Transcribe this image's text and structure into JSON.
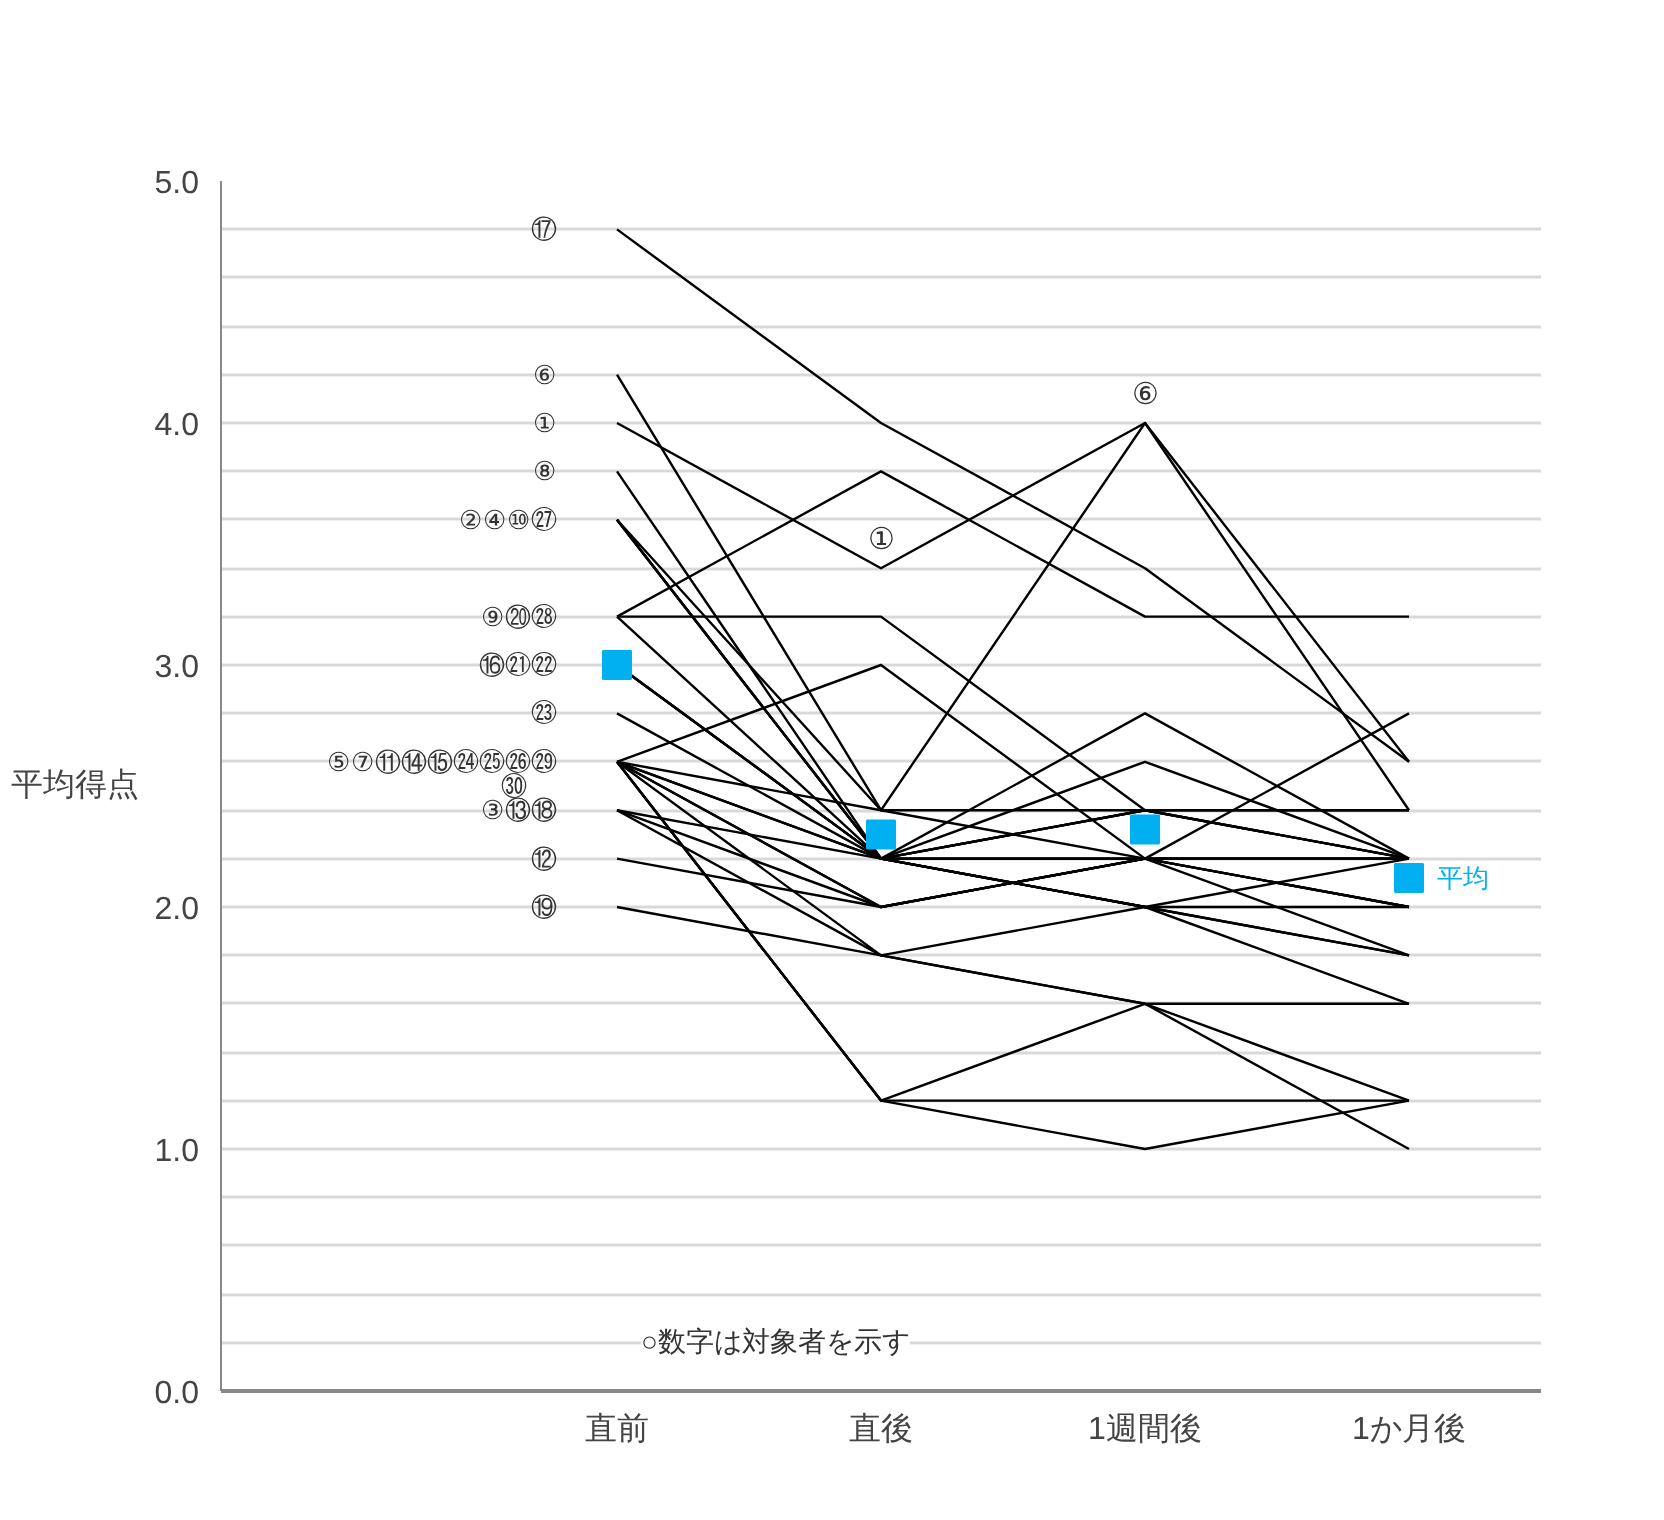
{
  "chart_data": {
    "type": "line",
    "ylabel": "平均得点",
    "categories": [
      null,
      "直前",
      "直後",
      "1週間後",
      "1か月後"
    ],
    "ylim": [
      0,
      5
    ],
    "yticks": [
      {
        "value": 0,
        "label": "0.0"
      },
      {
        "value": 0.2,
        "label": null
      },
      {
        "value": 0.4,
        "label": null
      },
      {
        "value": 0.6,
        "label": null
      },
      {
        "value": 0.8,
        "label": null
      },
      {
        "value": 1,
        "label": "1.0"
      },
      {
        "value": 1.2,
        "label": null
      },
      {
        "value": 1.4,
        "label": null
      },
      {
        "value": 1.6,
        "label": null
      },
      {
        "value": 1.8,
        "label": null
      },
      {
        "value": 2,
        "label": "2.0"
      },
      {
        "value": 2.2,
        "label": null
      },
      {
        "value": 2.4,
        "label": null
      },
      {
        "value": 2.6,
        "label": null
      },
      {
        "value": 2.8,
        "label": null
      },
      {
        "value": 3,
        "label": "3.0"
      },
      {
        "value": 3.2,
        "label": null
      },
      {
        "value": 3.4,
        "label": null
      },
      {
        "value": 3.6,
        "label": null
      },
      {
        "value": 3.8,
        "label": null
      },
      {
        "value": 4,
        "label": "4.0"
      },
      {
        "value": 4.2,
        "label": null
      },
      {
        "value": 4.4,
        "label": null
      },
      {
        "value": 4.6,
        "label": null
      },
      {
        "value": 4.8,
        "label": null
      },
      {
        "value": 5,
        "label": "5.0"
      }
    ],
    "grid": "y",
    "marker": "none",
    "line_style": "solid",
    "series": [
      {
        "color": "#000000",
        "values": [
          null,
          4.0,
          3.4,
          4.0,
          2.4
        ]
      },
      {
        "color": "#000000",
        "values": [
          null,
          4.2,
          2.4,
          4.0,
          2.6
        ]
      },
      {
        "color": "#000000",
        "values": [
          null,
          4.8,
          4.0,
          3.4,
          2.6
        ]
      },
      {
        "color": "#000000",
        "values": [
          null,
          3.8,
          2.2,
          2.2,
          2.2
        ]
      },
      {
        "color": "#000000",
        "values": [
          null,
          3.2,
          3.8,
          3.2,
          3.2
        ]
      },
      {
        "color": "#000000",
        "values": [
          null,
          3.2,
          3.2,
          2.4,
          2.2
        ]
      },
      {
        "color": "#000000",
        "values": [
          null,
          3.2,
          2.2,
          2.0,
          2.0
        ]
      },
      {
        "color": "#000000",
        "values": [
          null,
          3.6,
          2.2,
          2.4,
          2.4
        ]
      },
      {
        "color": "#000000",
        "values": [
          null,
          3.6,
          2.2,
          2.2,
          2.0
        ]
      },
      {
        "color": "#000000",
        "values": [
          null,
          3.6,
          2.2,
          2.0,
          1.8
        ]
      },
      {
        "color": "#000000",
        "values": [
          null,
          3.6,
          2.4,
          2.2,
          2.2
        ]
      },
      {
        "color": "#000000",
        "values": [
          null,
          3.0,
          2.2,
          2.2,
          2.2
        ]
      },
      {
        "color": "#000000",
        "values": [
          null,
          3.0,
          2.2,
          2.6,
          2.2
        ]
      },
      {
        "color": "#000000",
        "values": [
          null,
          3.0,
          2.2,
          2.4,
          2.2
        ]
      },
      {
        "color": "#000000",
        "values": [
          null,
          2.8,
          2.2,
          2.0,
          1.6
        ]
      },
      {
        "color": "#000000",
        "values": [
          null,
          2.6,
          3.0,
          2.2,
          1.8
        ]
      },
      {
        "color": "#000000",
        "values": [
          null,
          2.6,
          2.4,
          2.4,
          2.4
        ]
      },
      {
        "color": "#000000",
        "values": [
          null,
          2.6,
          2.2,
          2.8,
          2.2
        ]
      },
      {
        "color": "#000000",
        "values": [
          null,
          2.6,
          2.0,
          2.2,
          2.8
        ]
      },
      {
        "color": "#000000",
        "values": [
          null,
          2.6,
          2.2,
          2.0,
          2.2
        ]
      },
      {
        "color": "#000000",
        "values": [
          null,
          2.6,
          1.8,
          1.6,
          1.0
        ]
      },
      {
        "color": "#000000",
        "values": [
          null,
          2.6,
          1.2,
          1.6,
          1.2
        ]
      },
      {
        "color": "#000000",
        "values": [
          null,
          2.6,
          1.2,
          1.0,
          1.2
        ]
      },
      {
        "color": "#000000",
        "values": [
          null,
          2.6,
          2.0,
          2.2,
          2.2
        ]
      },
      {
        "color": "#000000",
        "values": [
          null,
          2.6,
          1.2,
          1.2,
          1.2
        ]
      },
      {
        "color": "#000000",
        "values": [
          null,
          2.4,
          2.2,
          2.4,
          2.2
        ]
      },
      {
        "color": "#000000",
        "values": [
          null,
          2.4,
          2.0,
          2.2,
          2.0
        ]
      },
      {
        "color": "#000000",
        "values": [
          null,
          2.4,
          1.8,
          2.0,
          1.8
        ]
      },
      {
        "color": "#000000",
        "values": [
          null,
          2.2,
          2.0,
          2.2,
          2.0
        ]
      },
      {
        "color": "#000000",
        "values": [
          null,
          2.0,
          1.8,
          1.6,
          1.6
        ]
      },
      {
        "type": "scatter",
        "marker": "square",
        "name": "平均",
        "color": "#00b0f0",
        "values": [
          null,
          3.0,
          2.3,
          2.32,
          2.12
        ]
      }
    ],
    "annotations": [
      {
        "text": "⑰",
        "x": "直前",
        "y": 4.8
      },
      {
        "text": "⑥",
        "x": "直前",
        "y": 4.2
      },
      {
        "text": "①",
        "x": "直前",
        "y": 4.0
      },
      {
        "text": "⑧",
        "x": "直前",
        "y": 3.8
      },
      {
        "text": "②④⑩㉗",
        "x": "直前",
        "y": 3.6
      },
      {
        "text": "⑨⑳㉘",
        "x": "直前",
        "y": 3.2
      },
      {
        "text": "⑯㉑㉒",
        "x": "直前",
        "y": 3.0
      },
      {
        "text": "㉓",
        "x": "直前",
        "y": 2.8
      },
      {
        "text": "⑤⑦⑪⑭⑮㉔㉕㉖㉙",
        "x": "直前",
        "y": 2.6
      },
      "㉚",
      {
        "text": "③⑬⑱",
        "x": "直前",
        "y": 2.4
      },
      {
        "text": "⑫",
        "x": "直前",
        "y": 2.2
      },
      {
        "text": "⑲",
        "x": "直前",
        "y": 2.0
      },
      {
        "text": "⑥",
        "x": "1週間後",
        "y": 4.0
      },
      {
        "text": "①",
        "x": "直後",
        "y": 3.4
      },
      "○数字は対象者を示す"
    ]
  }
}
